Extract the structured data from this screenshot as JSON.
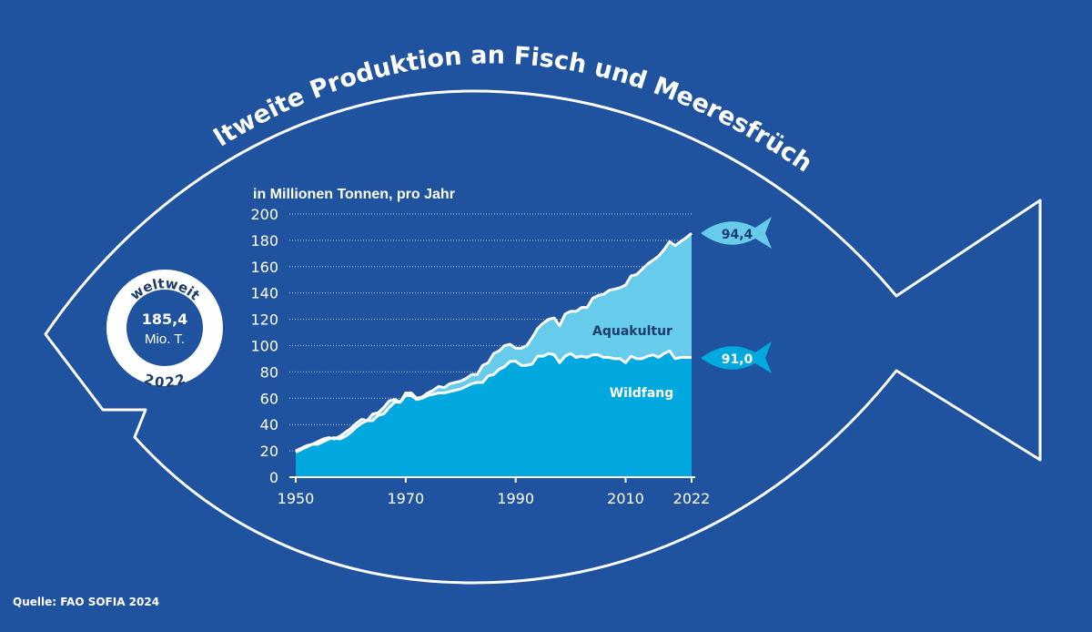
{
  "title": "Weltweite Produktion an Fisch und Meeresfrüchten",
  "source": "Quelle: FAO SOFIA 2024",
  "badge": {
    "top": "weltweit",
    "value": "185,4",
    "unit": "Mio. T.",
    "year": "2022"
  },
  "colors": {
    "background": "#1f539f",
    "wildfang": "#00a8e0",
    "aquakultur": "#67cbec",
    "outline": "#ffffff",
    "dark_text": "#1d3c6e"
  },
  "chart_data": {
    "type": "area",
    "stacked": true,
    "ylabel": "in Millionen Tonnen, pro Jahr",
    "ylim": [
      0,
      200
    ],
    "xlim": [
      1950,
      2022
    ],
    "yticks": [
      0,
      20,
      40,
      60,
      80,
      100,
      120,
      140,
      160,
      180,
      200
    ],
    "xticks": [
      1950,
      1970,
      1990,
      2010,
      2022
    ],
    "grid": "horizontal dotted",
    "x": [
      1950,
      1951,
      1952,
      1953,
      1954,
      1955,
      1956,
      1957,
      1958,
      1959,
      1960,
      1961,
      1962,
      1963,
      1964,
      1965,
      1966,
      1967,
      1968,
      1969,
      1970,
      1971,
      1972,
      1973,
      1974,
      1975,
      1976,
      1977,
      1978,
      1979,
      1980,
      1981,
      1982,
      1983,
      1984,
      1985,
      1986,
      1987,
      1988,
      1989,
      1990,
      1991,
      1992,
      1993,
      1994,
      1995,
      1996,
      1997,
      1998,
      1999,
      2000,
      2001,
      2002,
      2003,
      2004,
      2005,
      2006,
      2007,
      2008,
      2009,
      2010,
      2011,
      2012,
      2013,
      2014,
      2015,
      2016,
      2017,
      2018,
      2019,
      2020,
      2021,
      2022
    ],
    "series": [
      {
        "name": "Wildfang",
        "end_label": "91,0",
        "values": [
          19,
          21,
          23,
          25,
          25,
          27,
          29,
          30,
          29,
          31,
          34,
          38,
          41,
          43,
          43,
          47,
          48,
          53,
          57,
          57,
          62,
          62,
          59,
          60,
          62,
          63,
          64,
          64,
          65,
          66,
          67,
          69,
          71,
          72,
          72,
          77,
          78,
          82,
          84,
          88,
          88,
          85,
          85,
          86,
          92,
          92,
          94,
          93,
          87,
          92,
          94,
          91,
          92,
          91,
          93,
          93,
          91,
          91,
          90,
          90,
          87,
          92,
          90,
          90,
          92,
          93,
          91,
          94,
          96,
          90,
          91,
          91,
          91.0
        ]
      },
      {
        "name": "Aquakultur",
        "end_label": "94,4",
        "total_values": [
          20,
          22,
          24,
          25,
          27,
          29,
          30,
          29,
          31,
          34,
          37,
          41,
          44,
          43,
          48,
          49,
          53,
          58,
          59,
          57,
          64,
          64,
          60,
          61,
          64,
          66,
          69,
          68,
          71,
          72,
          73,
          75,
          78,
          78,
          85,
          87,
          94,
          96,
          100,
          101,
          98,
          98,
          100,
          106,
          113,
          117,
          120,
          121,
          115,
          124,
          126,
          126,
          129,
          129,
          136,
          138,
          139,
          142,
          143,
          144,
          146,
          153,
          154,
          158,
          162,
          165,
          168,
          173,
          179,
          176,
          179,
          182,
          185.4
        ]
      }
    ]
  }
}
